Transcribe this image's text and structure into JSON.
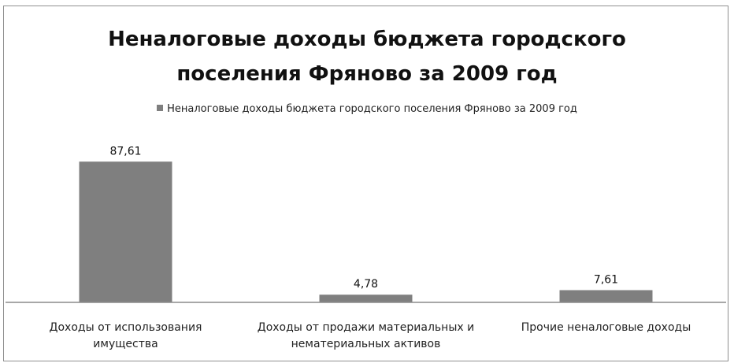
{
  "chart_data": {
    "type": "bar",
    "title_lines": [
      "Неналоговые доходы бюджета городского",
      "поселения Фряново за 2009 год"
    ],
    "legend": "Неналоговые доходы бюджета городского поселения Фряново за 2009 год",
    "categories": [
      [
        "Доходы от использования",
        "имущества"
      ],
      [
        "Доходы от продажи материальных и",
        "нематериальных активов"
      ],
      [
        "Прочие неналоговые доходы"
      ]
    ],
    "series": [
      {
        "name": "Неналоговые доходы бюджета городского поселения Фряново за 2009 год",
        "values": [
          87.61,
          4.78,
          7.61
        ],
        "value_labels": [
          "87,61",
          "4,78",
          "7,61"
        ],
        "color": "#7f7f7f"
      }
    ],
    "ylim": [
      0,
      100
    ],
    "grid": false,
    "legend_position": "top"
  }
}
